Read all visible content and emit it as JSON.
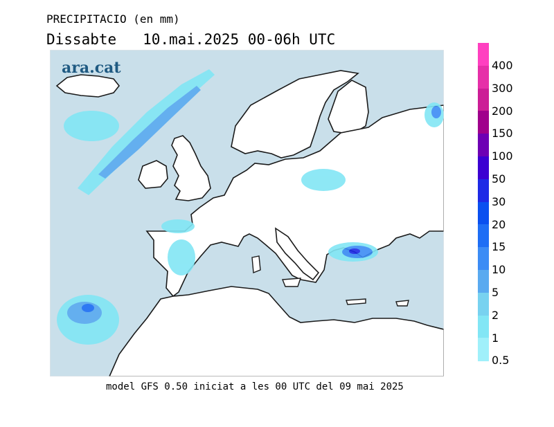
{
  "header": {
    "variable": "PRECIPITACIO (en mm)",
    "period": "Dissabte   10.mai.2025 00-06h UTC"
  },
  "brand": {
    "logo_text": "ara.cat"
  },
  "footer": {
    "model_info": "model GFS 0.50 iniciat a les 00 UTC del 09 mai 2025"
  },
  "legend": {
    "levels": [
      {
        "label": "400",
        "color": "#ff40c0"
      },
      {
        "label": "300",
        "color": "#e630a8"
      },
      {
        "label": "200",
        "color": "#cc1e96"
      },
      {
        "label": "150",
        "color": "#a0008c"
      },
      {
        "label": "100",
        "color": "#6e00b4"
      },
      {
        "label": "50",
        "color": "#3c00d2"
      },
      {
        "label": "30",
        "color": "#1e2ae6"
      },
      {
        "label": "20",
        "color": "#0a50f0"
      },
      {
        "label": "15",
        "color": "#1e6ef5"
      },
      {
        "label": "10",
        "color": "#3c8cf5"
      },
      {
        "label": "5",
        "color": "#5aaaf0"
      },
      {
        "label": "2",
        "color": "#78d2f0"
      },
      {
        "label": "1",
        "color": "#82e6f5"
      },
      {
        "label": "0.5",
        "color": "#a0f0fa"
      }
    ]
  },
  "map": {
    "sea_color": "#c9dfea",
    "land_color": "#ffffff",
    "coast_color": "#1a1a1a"
  }
}
